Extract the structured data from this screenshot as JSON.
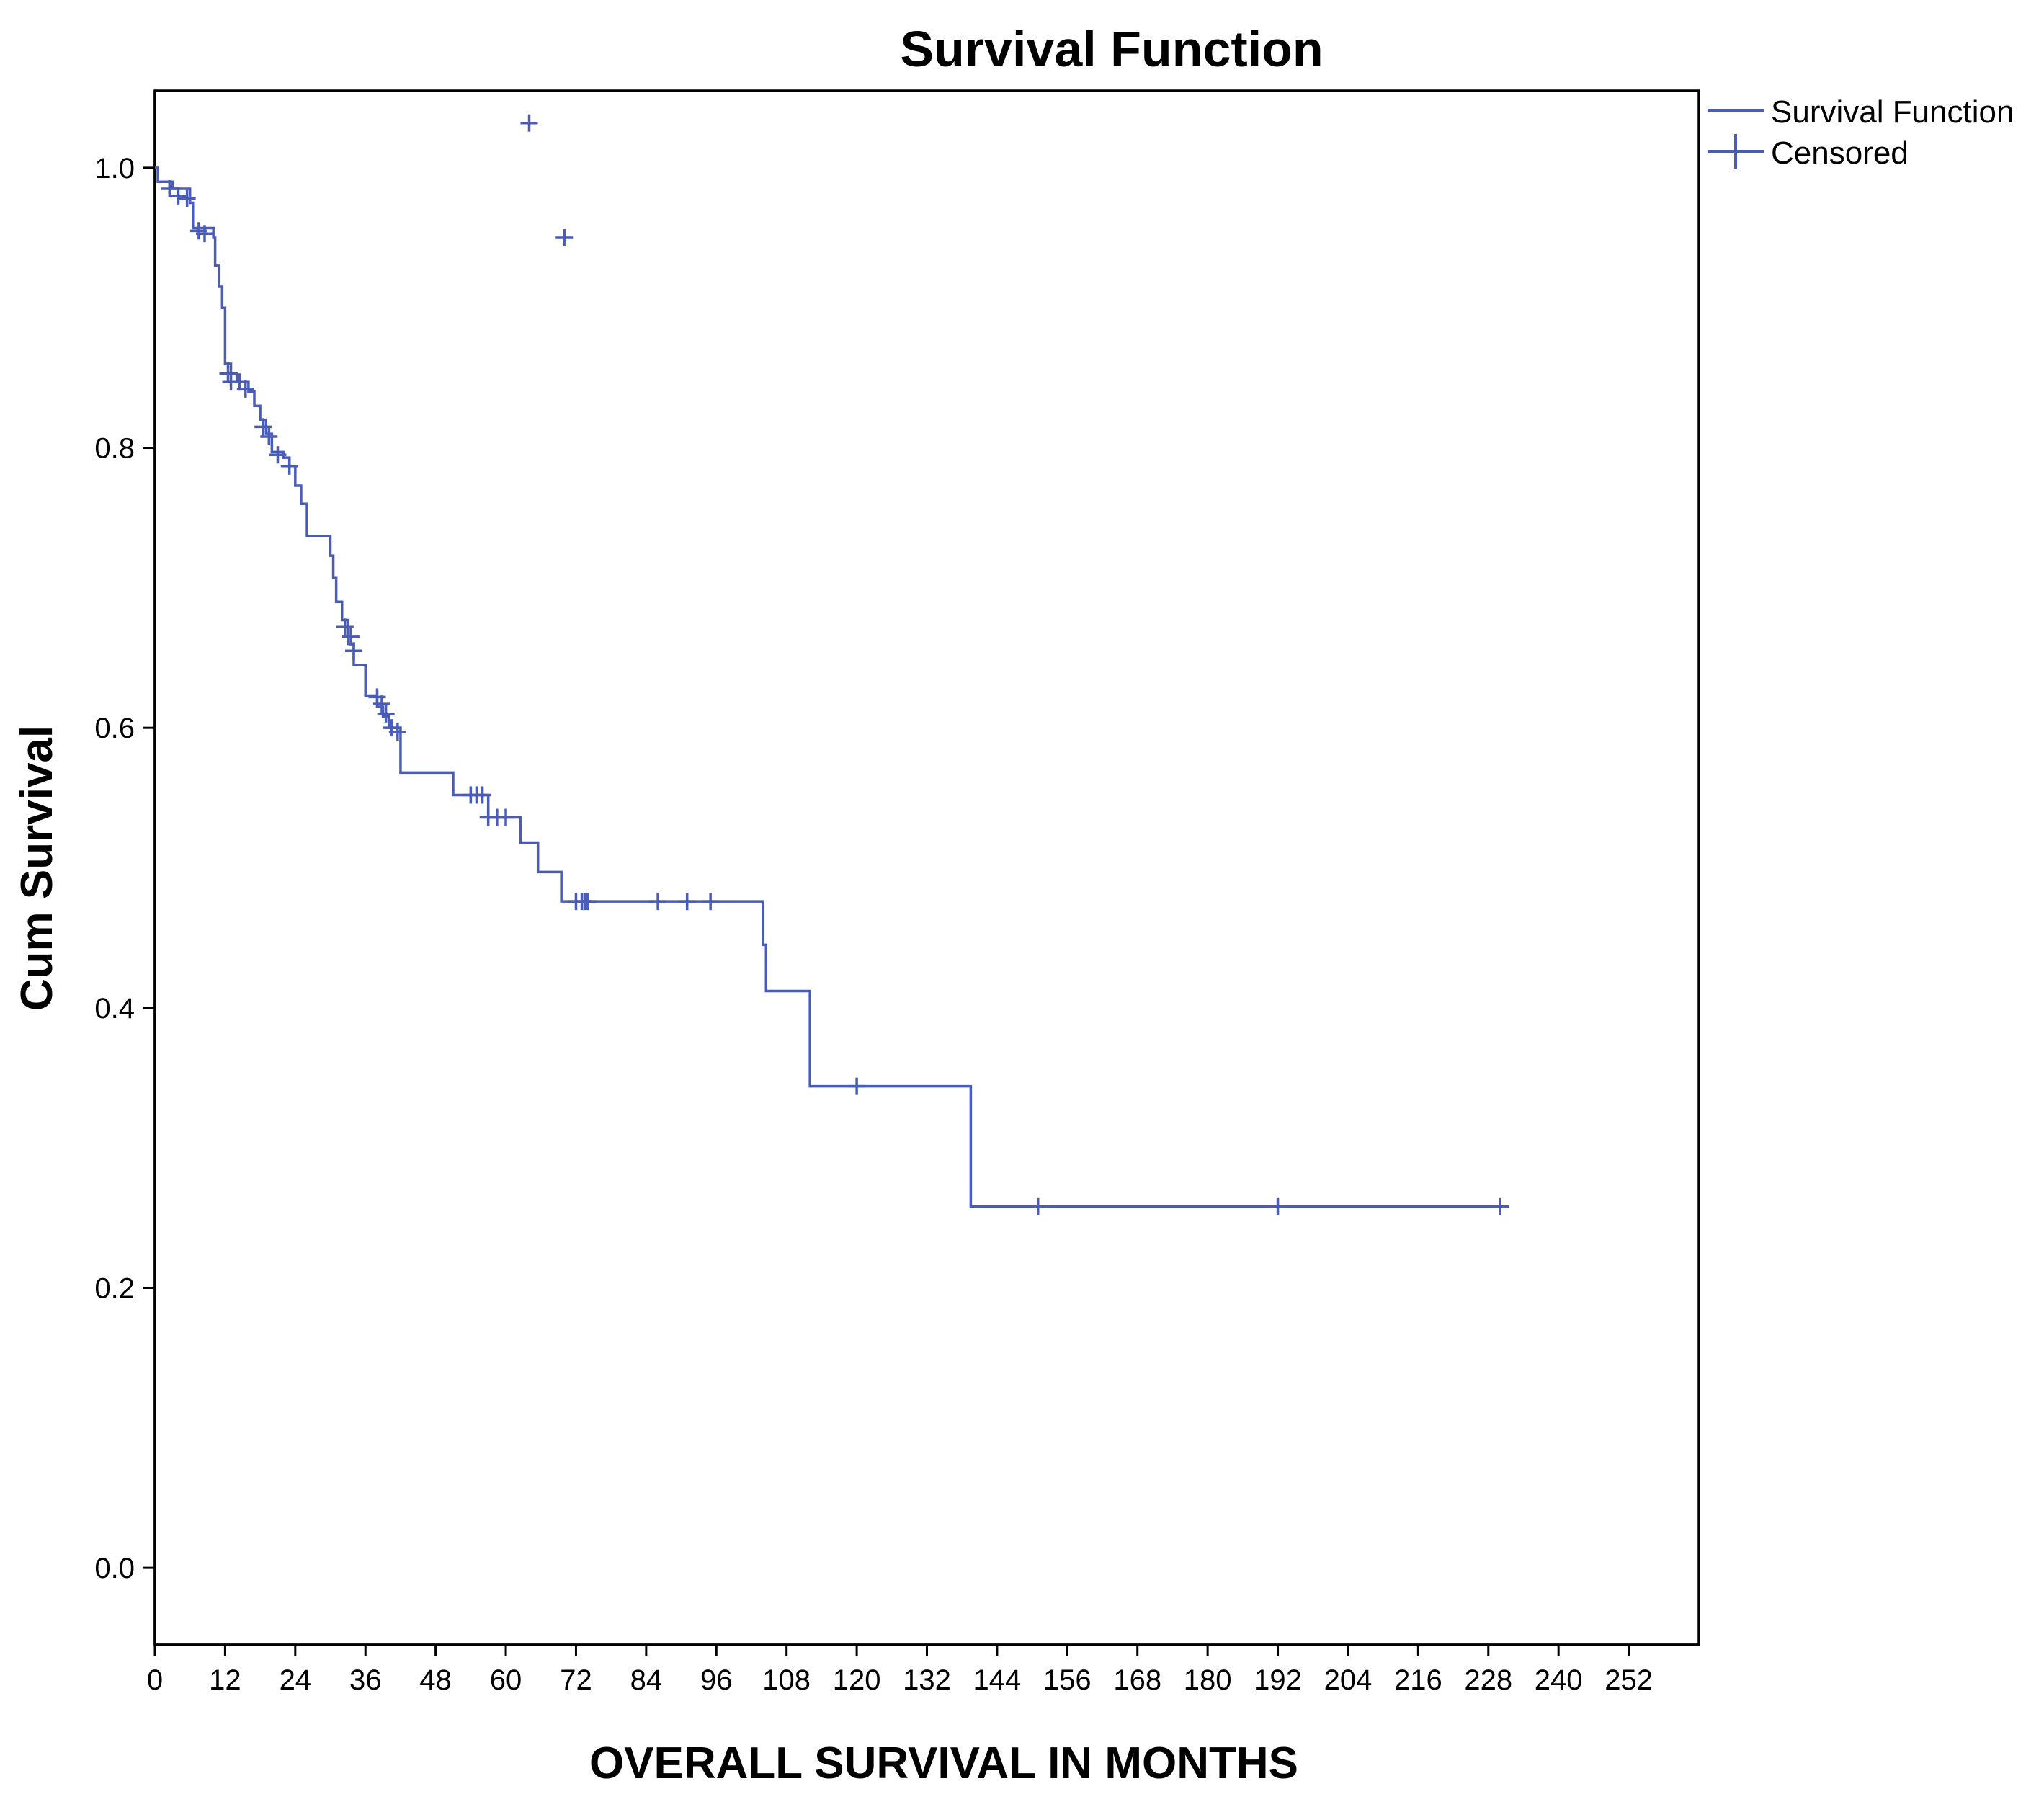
{
  "chart_data": {
    "type": "line",
    "title": "Survival Function",
    "xlabel": "OVERALL SURVIVAL IN MONTHS",
    "ylabel": "Cum Survival",
    "xlim": [
      0,
      264
    ],
    "ylim": [
      -0.055,
      1.055
    ],
    "x_ticks": [
      0,
      12,
      24,
      36,
      48,
      60,
      72,
      84,
      96,
      108,
      120,
      132,
      144,
      156,
      168,
      180,
      192,
      204,
      216,
      228,
      240,
      252
    ],
    "y_ticks": [
      0.0,
      0.2,
      0.4,
      0.6,
      0.8,
      1.0
    ],
    "y_tick_labels": [
      "0.0",
      "0.2",
      "0.4",
      "0.6",
      "0.8",
      "1.0"
    ],
    "grid": false,
    "legend_position": "outside-top-right",
    "line_color": "#4a5cb5",
    "series": [
      {
        "name": "Survival Function",
        "style": "step",
        "points": [
          [
            0,
            1.0
          ],
          [
            0.5,
            0.99
          ],
          [
            3,
            0.985
          ],
          [
            6,
            0.975
          ],
          [
            6.5,
            0.957
          ],
          [
            9,
            0.957
          ],
          [
            10,
            0.95
          ],
          [
            10.3,
            0.93
          ],
          [
            11,
            0.915
          ],
          [
            11.5,
            0.9
          ],
          [
            12,
            0.86
          ],
          [
            13,
            0.853
          ],
          [
            14,
            0.847
          ],
          [
            16,
            0.84
          ],
          [
            17,
            0.83
          ],
          [
            18,
            0.82
          ],
          [
            19,
            0.81
          ],
          [
            20,
            0.797
          ],
          [
            22,
            0.793
          ],
          [
            23,
            0.787
          ],
          [
            24,
            0.773
          ],
          [
            25,
            0.76
          ],
          [
            26,
            0.737
          ],
          [
            29,
            0.737
          ],
          [
            30,
            0.723
          ],
          [
            30.5,
            0.707
          ],
          [
            31,
            0.69
          ],
          [
            32,
            0.677
          ],
          [
            33,
            0.66
          ],
          [
            34,
            0.645
          ],
          [
            36,
            0.623
          ],
          [
            38,
            0.615
          ],
          [
            39,
            0.608
          ],
          [
            40,
            0.6
          ],
          [
            42,
            0.568
          ],
          [
            50.5,
            0.568
          ],
          [
            51,
            0.552
          ],
          [
            56,
            0.552
          ],
          [
            57,
            0.536
          ],
          [
            62,
            0.536
          ],
          [
            62.5,
            0.518
          ],
          [
            65,
            0.518
          ],
          [
            65.5,
            0.497
          ],
          [
            69,
            0.497
          ],
          [
            69.5,
            0.476
          ],
          [
            103.5,
            0.476
          ],
          [
            104,
            0.445
          ],
          [
            104.5,
            0.412
          ],
          [
            111.5,
            0.412
          ],
          [
            112,
            0.344
          ],
          [
            139,
            0.344
          ],
          [
            139.5,
            0.258
          ],
          [
            230,
            0.258
          ]
        ]
      },
      {
        "name": "Censored",
        "style": "marker-plus",
        "points": [
          [
            2.5,
            0.985
          ],
          [
            4,
            0.98
          ],
          [
            5.5,
            0.978
          ],
          [
            7.5,
            0.955
          ],
          [
            8.5,
            0.953
          ],
          [
            12.5,
            0.853
          ],
          [
            13,
            0.847
          ],
          [
            14.5,
            0.847
          ],
          [
            15.5,
            0.842
          ],
          [
            18.5,
            0.815
          ],
          [
            19.5,
            0.808
          ],
          [
            21,
            0.795
          ],
          [
            23,
            0.787
          ],
          [
            32.5,
            0.672
          ],
          [
            33.5,
            0.665
          ],
          [
            34,
            0.655
          ],
          [
            38,
            0.622
          ],
          [
            38.8,
            0.617
          ],
          [
            39.5,
            0.61
          ],
          [
            40.5,
            0.6
          ],
          [
            41.5,
            0.597
          ],
          [
            54,
            0.552
          ],
          [
            55,
            0.552
          ],
          [
            56,
            0.552
          ],
          [
            57,
            0.536
          ],
          [
            58.5,
            0.536
          ],
          [
            60,
            0.536
          ],
          [
            64,
            1.032
          ],
          [
            70,
            0.95
          ],
          [
            72,
            0.476
          ],
          [
            73,
            0.476
          ],
          [
            73.5,
            0.476
          ],
          [
            74,
            0.476
          ],
          [
            86,
            0.476
          ],
          [
            91,
            0.476
          ],
          [
            95,
            0.476
          ],
          [
            120,
            0.344
          ],
          [
            151,
            0.258
          ],
          [
            192,
            0.258
          ],
          [
            230,
            0.258
          ]
        ]
      }
    ]
  }
}
